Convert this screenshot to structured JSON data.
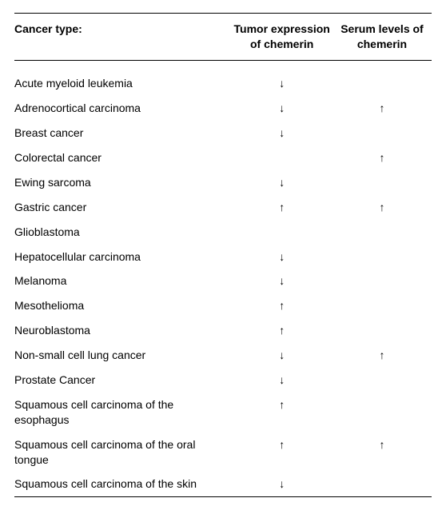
{
  "table": {
    "headers": {
      "cancer_type": "Cancer type:",
      "tumor_expression": "Tumor expression of chemerin",
      "serum_levels": "Serum levels of chemerin"
    },
    "arrows": {
      "up": "↑",
      "down": "↓"
    },
    "rows": [
      {
        "name": "Acute myeloid leukemia",
        "tumor": "↓",
        "serum": ""
      },
      {
        "name": "Adrenocortical carcinoma",
        "tumor": "↓",
        "serum": "↑"
      },
      {
        "name": "Breast cancer",
        "tumor": "↓",
        "serum": ""
      },
      {
        "name": "Colorectal cancer",
        "tumor": "",
        "serum": "↑"
      },
      {
        "name": "Ewing sarcoma",
        "tumor": "↓",
        "serum": ""
      },
      {
        "name": "Gastric cancer",
        "tumor": "↑",
        "serum": "↑"
      },
      {
        "name": "Glioblastoma",
        "tumor": "",
        "serum": ""
      },
      {
        "name": "Hepatocellular carcinoma",
        "tumor": "↓",
        "serum": ""
      },
      {
        "name": "Melanoma",
        "tumor": "↓",
        "serum": ""
      },
      {
        "name": "Mesothelioma",
        "tumor": "↑",
        "serum": ""
      },
      {
        "name": "Neuroblastoma",
        "tumor": "↑",
        "serum": ""
      },
      {
        "name": "Non-small cell lung cancer",
        "tumor": "↓",
        "serum": "↑"
      },
      {
        "name": "Prostate Cancer",
        "tumor": "↓",
        "serum": ""
      },
      {
        "name": "Squamous cell carcinoma of the esophagus",
        "tumor": "↑",
        "serum": ""
      },
      {
        "name": "Squamous cell carcinoma of the oral tongue",
        "tumor": "↑",
        "serum": "↑"
      },
      {
        "name": "Squamous cell carcinoma of the skin",
        "tumor": "↓",
        "serum": ""
      }
    ]
  }
}
